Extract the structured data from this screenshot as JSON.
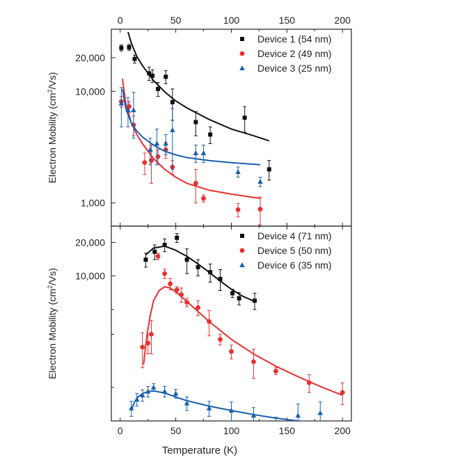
{
  "chart_data": [
    {
      "type": "scatter",
      "panel": "top",
      "ylabel_main": "Electron Mobility (cm",
      "ylabel_sup": "2",
      "ylabel_tail": "/Vs)",
      "x_ticks": [
        0,
        50,
        100,
        150,
        200
      ],
      "x_tick_labels": [
        "0",
        "50",
        "100",
        "150",
        "200"
      ],
      "xlim": [
        -8,
        208
      ],
      "ylim": [
        620,
        36000
      ],
      "y_scale": "log",
      "y_ticks": [
        1000,
        10000,
        20000
      ],
      "y_tick_labels": [
        "1,000",
        "10,000",
        "20,000"
      ],
      "legend_position": "top-right",
      "series": [
        {
          "name": "Device 1 (54 nm)",
          "marker": "square",
          "color": "#111111",
          "x": [
            1,
            8,
            13,
            26,
            29,
            34,
            41,
            47,
            68,
            81,
            112,
            134
          ],
          "y": [
            24500,
            24800,
            19500,
            14500,
            13800,
            10500,
            13500,
            8000,
            5300,
            4100,
            5800,
            2000
          ],
          "err": [
            1500,
            1500,
            1600,
            2000,
            1800,
            1500,
            1800,
            2500,
            1300,
            700,
            1500,
            400
          ],
          "fit": {
            "x": [
              7,
              10,
              15,
              20,
              30,
              40,
              50,
              60,
              80,
              100,
              120,
              134
            ],
            "y": [
              34000,
              27000,
              20500,
              17000,
              12500,
              9900,
              8200,
              7100,
              5600,
              4600,
              4000,
              3600
            ]
          }
        },
        {
          "name": "Device 2 (49 nm)",
          "marker": "circle",
          "color": "#e83030",
          "x": [
            1,
            8,
            12,
            22,
            28,
            34,
            41,
            47,
            68,
            75,
            106,
            126
          ],
          "y": [
            8100,
            7300,
            5000,
            2300,
            2400,
            2600,
            3000,
            2100,
            1500,
            1100,
            870,
            880
          ],
          "err": [
            900,
            800,
            1000,
            500,
            900,
            400,
            500,
            300,
            500,
            80,
            120,
            250
          ],
          "fit": {
            "x": [
              2,
              5,
              10,
              15,
              20,
              30,
              40,
              50,
              60,
              80,
              100,
              126
            ],
            "y": [
              13000,
              7800,
              5200,
              4100,
              3400,
              2500,
              2000,
              1700,
              1500,
              1300,
              1200,
              1100
            ]
          }
        },
        {
          "name": "Device 3 (25 nm)",
          "marker": "triangle",
          "color": "#1a5fad",
          "x": [
            1,
            7,
            12,
            27,
            33,
            41,
            47,
            68,
            75,
            106,
            126
          ],
          "y": [
            7800,
            6800,
            6800,
            3000,
            3400,
            3400,
            4500,
            2800,
            2800,
            1900,
            1550
          ],
          "err": [
            3000,
            2000,
            3000,
            800,
            1200,
            700,
            2500,
            500,
            500,
            200,
            150
          ],
          "fit": {
            "x": [
              2,
              5,
              10,
              15,
              20,
              30,
              40,
              50,
              60,
              80,
              100,
              126
            ],
            "y": [
              10500,
              7000,
              5200,
              4400,
              3900,
              3300,
              2900,
              2700,
              2550,
              2400,
              2300,
              2200
            ]
          }
        }
      ]
    },
    {
      "type": "scatter",
      "panel": "bottom",
      "ylabel_main": "Electron Mobility (cm",
      "ylabel_sup": "2",
      "ylabel_tail": "/Vs)",
      "xlabel": "Temperature (K)",
      "x_ticks": [
        0,
        50,
        100,
        150,
        200
      ],
      "x_tick_labels": [
        "0",
        "50",
        "100",
        "150",
        "200"
      ],
      "xlim": [
        -8,
        208
      ],
      "ylim": [
        500,
        28000
      ],
      "y_scale": "log",
      "y_ticks": [
        10000,
        20000
      ],
      "y_tick_labels": [
        "10,000",
        "20,000"
      ],
      "y_minor_ticks": [
        1000,
        3000,
        5000
      ],
      "legend_position": "top-right",
      "series": [
        {
          "name": "Device 4 (71 nm)",
          "marker": "square",
          "color": "#111111",
          "x": [
            23,
            31,
            40,
            51,
            60,
            70,
            81,
            90,
            101,
            107,
            121
          ],
          "y": [
            14000,
            16500,
            19000,
            22000,
            14000,
            12000,
            10800,
            9400,
            7000,
            6300,
            6000
          ],
          "err": [
            2000,
            2500,
            2500,
            2000,
            3500,
            2000,
            2000,
            2000,
            600,
            800,
            1000
          ],
          "fit": {
            "x": [
              23,
              30,
              40,
              50,
              60,
              70,
              80,
              90,
              100,
              110,
              121
            ],
            "y": [
              15500,
              17800,
              18500,
              17000,
              15000,
              12800,
              10800,
              9000,
              7600,
              6600,
              5900
            ]
          }
        },
        {
          "name": "Device 5 (50 nm)",
          "marker": "circle",
          "color": "#e83030",
          "x": [
            20,
            25,
            28,
            34,
            40,
            45,
            51,
            55,
            60,
            70,
            80,
            90,
            100,
            120,
            140,
            170,
            200
          ],
          "y": [
            2300,
            2500,
            3000,
            15000,
            10500,
            8500,
            7500,
            6800,
            5800,
            5200,
            3900,
            2700,
            2100,
            1700,
            1400,
            1100,
            900
          ],
          "err": [
            800,
            500,
            1000,
            1000,
            1000,
            1000,
            500,
            1000,
            500,
            800,
            1000,
            300,
            300,
            500,
            100,
            200,
            200
          ],
          "fit": {
            "x": [
              21,
              24,
              27,
              30,
              35,
              40,
              45,
              50,
              60,
              70,
              80,
              100,
              120,
              140,
              160,
              180,
              200
            ],
            "y": [
              1600,
              2900,
              4400,
              6000,
              7400,
              8000,
              7800,
              7200,
              5900,
              4800,
              3900,
              2700,
              2000,
              1550,
              1250,
              1020,
              850
            ]
          }
        },
        {
          "name": "Device 6 (35 nm)",
          "marker": "triangle",
          "color": "#1a5fad",
          "x": [
            10,
            15,
            20,
            25,
            30,
            40,
            50,
            60,
            80,
            100,
            120,
            140,
            160,
            180
          ],
          "y": [
            650,
            780,
            850,
            920,
            1000,
            920,
            880,
            720,
            650,
            620,
            560,
            480,
            560,
            590
          ],
          "err": [
            100,
            100,
            100,
            100,
            80,
            100,
            80,
            100,
            100,
            120,
            100,
            60,
            150,
            150
          ],
          "fit": {
            "x": [
              10,
              13,
              16,
              20,
              25,
              30,
              40,
              50,
              60,
              80,
              100,
              120,
              140,
              160,
              180
            ],
            "y": [
              630,
              740,
              820,
              880,
              920,
              930,
              890,
              820,
              760,
              680,
              620,
              570,
              530,
              500,
              480
            ]
          }
        }
      ]
    }
  ]
}
